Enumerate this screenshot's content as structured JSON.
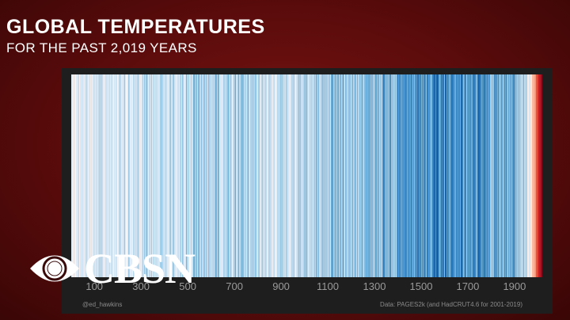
{
  "header": {
    "title": "GLOBAL TEMPERATURES",
    "subtitle": "FOR THE PAST 2,019 YEARS"
  },
  "chart_data": {
    "type": "heatmap",
    "variant": "warming stripes",
    "x_start": 1,
    "x_end": 2019,
    "xticks": [
      "100",
      "300",
      "500",
      "700",
      "900",
      "1100",
      "1300",
      "1500",
      "1700",
      "1900"
    ],
    "colors": {
      "coldest": "#08306b",
      "neutral": "#f7fbff",
      "warmest": "#b2182b"
    },
    "anomaly_profile": [
      {
        "year": 1,
        "anomaly": -0.1
      },
      {
        "year": 200,
        "anomaly": -0.15
      },
      {
        "year": 400,
        "anomaly": -0.2
      },
      {
        "year": 600,
        "anomaly": -0.3
      },
      {
        "year": 800,
        "anomaly": -0.2
      },
      {
        "year": 1000,
        "anomaly": -0.2
      },
      {
        "year": 1100,
        "anomaly": -0.35
      },
      {
        "year": 1300,
        "anomaly": -0.4
      },
      {
        "year": 1450,
        "anomaly": -0.5
      },
      {
        "year": 1600,
        "anomaly": -0.55
      },
      {
        "year": 1700,
        "anomaly": -0.55
      },
      {
        "year": 1800,
        "anomaly": -0.5
      },
      {
        "year": 1900,
        "anomaly": -0.45
      },
      {
        "year": 1950,
        "anomaly": -0.2
      },
      {
        "year": 1980,
        "anomaly": 0.2
      },
      {
        "year": 2000,
        "anomaly": 0.6
      },
      {
        "year": 2019,
        "anomaly": 0.9
      }
    ]
  },
  "footer": {
    "credit": "@ed_hawkins",
    "source": "Data: PAGES2k (and HadCRUT4.6 for 2001-2019)"
  },
  "logo": {
    "text": "CBSN",
    "icon": "cbs-eye-icon"
  }
}
